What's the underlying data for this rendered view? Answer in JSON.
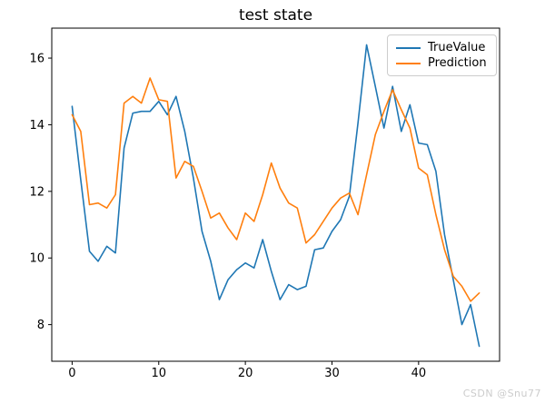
{
  "watermark": "CSDN @Snu77",
  "colors": {
    "background": "#ffffff",
    "axis": "#000000",
    "blue": "#1f77b4",
    "orange": "#ff7f0e",
    "watermark_gray": "#cccccc",
    "legend_border": "#cccccc"
  },
  "chart_data": {
    "type": "line",
    "title": "test state",
    "xlabel": "",
    "ylabel": "",
    "grid": false,
    "legend": {
      "location": "upper right",
      "entries": [
        "TrueValue",
        "Prediction"
      ]
    },
    "xlim": [
      -2.35,
      49.35
    ],
    "ylim": [
      6.9,
      16.9
    ],
    "xticks": [
      0,
      10,
      20,
      30,
      40
    ],
    "yticks": [
      8,
      10,
      12,
      14,
      16
    ],
    "x": [
      0,
      1,
      2,
      3,
      4,
      5,
      6,
      7,
      8,
      9,
      10,
      11,
      12,
      13,
      14,
      15,
      16,
      17,
      18,
      19,
      20,
      21,
      22,
      23,
      24,
      25,
      26,
      27,
      28,
      29,
      30,
      31,
      32,
      33,
      34,
      35,
      36,
      37,
      38,
      39,
      40,
      41,
      42,
      43,
      44,
      45,
      46,
      47
    ],
    "series": [
      {
        "name": "TrueValue",
        "color": "#1f77b4",
        "values": [
          14.55,
          12.35,
          10.2,
          9.9,
          10.35,
          10.15,
          13.3,
          14.35,
          14.4,
          14.4,
          14.7,
          14.3,
          14.85,
          13.8,
          12.4,
          10.8,
          9.9,
          8.75,
          9.35,
          9.65,
          9.85,
          9.7,
          10.55,
          9.6,
          8.75,
          9.2,
          9.05,
          9.15,
          10.25,
          10.3,
          10.8,
          11.15,
          11.85,
          14.05,
          16.4,
          15.15,
          13.9,
          15.15,
          13.8,
          14.6,
          13.45,
          13.4,
          12.6,
          10.7,
          9.35,
          8.0,
          8.6,
          7.35
        ]
      },
      {
        "name": "Prediction",
        "color": "#ff7f0e",
        "values": [
          14.3,
          13.8,
          11.6,
          11.65,
          11.5,
          11.9,
          14.65,
          14.85,
          14.65,
          15.4,
          14.75,
          14.7,
          12.4,
          12.9,
          12.75,
          12.0,
          11.2,
          11.35,
          10.9,
          10.55,
          11.35,
          11.1,
          11.9,
          12.85,
          12.1,
          11.65,
          11.5,
          10.45,
          10.7,
          11.1,
          11.5,
          11.8,
          11.95,
          11.3,
          12.5,
          13.7,
          14.4,
          15.05,
          14.45,
          13.9,
          12.7,
          12.5,
          11.3,
          10.25,
          9.45,
          9.15,
          8.7,
          8.95
        ]
      }
    ]
  }
}
